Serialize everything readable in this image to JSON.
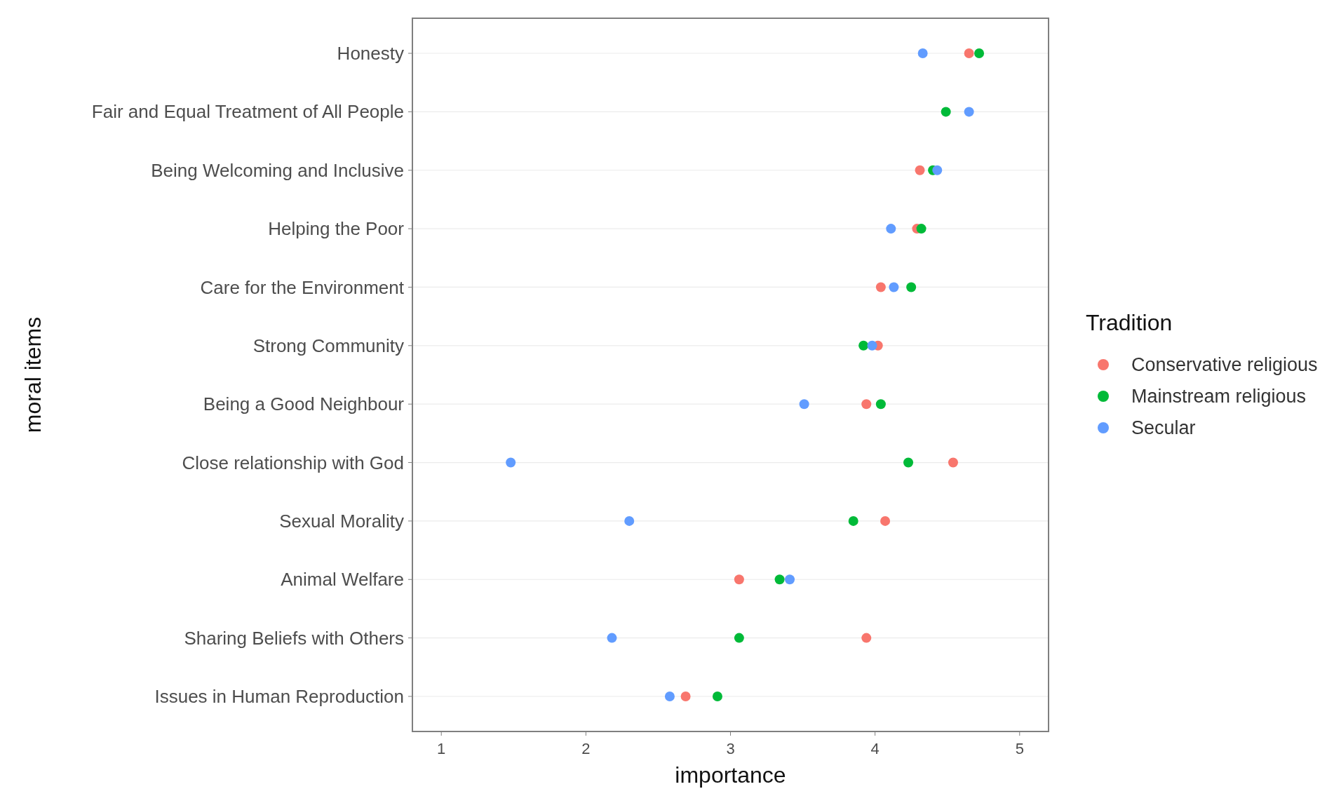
{
  "chart_data": {
    "type": "scatter",
    "orientation": "horizontal",
    "xlabel": "importance",
    "ylabel": "moral items",
    "legend_title": "Tradition",
    "legend": "right",
    "grid": "y",
    "marker": "circle",
    "categories": [
      "Honesty",
      "Fair and Equal Treatment of All People",
      "Being Welcoming and Inclusive",
      "Helping the Poor",
      "Care for the Environment",
      "Strong Community",
      "Being a Good Neighbour",
      "Close relationship with God",
      "Sexual Morality",
      "Animal Welfare",
      "Sharing Beliefs with Others",
      "Issues in Human Reproduction"
    ],
    "xlim": [
      0.8,
      5.2
    ],
    "xticks": [
      1,
      2,
      3,
      4,
      5
    ],
    "series": [
      {
        "name": "Conservative religious",
        "color": "#f8766d",
        "values": [
          4.65,
          null,
          4.31,
          4.29,
          4.04,
          4.02,
          3.94,
          4.54,
          4.07,
          3.06,
          3.94,
          2.69
        ]
      },
      {
        "name": "Mainstream religious",
        "color": "#00ba38",
        "values": [
          4.72,
          4.49,
          4.4,
          4.32,
          4.25,
          3.92,
          4.04,
          4.23,
          3.85,
          3.34,
          3.06,
          2.91
        ]
      },
      {
        "name": "Secular",
        "color": "#619cff",
        "values": [
          4.33,
          4.65,
          4.43,
          4.11,
          4.13,
          3.98,
          3.51,
          1.48,
          2.3,
          3.41,
          2.18,
          2.58
        ]
      }
    ]
  }
}
